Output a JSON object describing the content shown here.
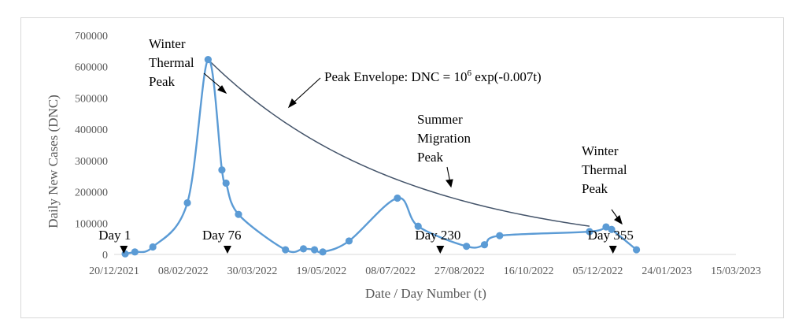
{
  "chart_data": {
    "type": "line",
    "title": "",
    "xlabel": "Date / Day Number (t)",
    "ylabel": "Daily New Cases (DNC)",
    "grid": false,
    "legend": "none",
    "x_domain_days": [
      0,
      450
    ],
    "ylim": [
      0,
      700000
    ],
    "y_ticks": [
      0,
      100000,
      200000,
      300000,
      400000,
      500000,
      600000,
      700000
    ],
    "x_tick_labels": [
      "20/12/2021",
      "08/02/2022",
      "30/03/2022",
      "19/05/2022",
      "08/07/2022",
      "27/08/2022",
      "16/10/2022",
      "05/12/2022",
      "24/01/2023",
      "15/03/2023"
    ],
    "series": [
      {
        "name": "Daily New Cases",
        "color": "#5b9bd5",
        "x": [
          8,
          15,
          28,
          53,
          68,
          78,
          81,
          90,
          124,
          137,
          145,
          151,
          170,
          205,
          220,
          255,
          268,
          279,
          344,
          356,
          360,
          378
        ],
        "values": [
          2000,
          8000,
          24000,
          165000,
          623000,
          270000,
          228000,
          128000,
          15000,
          18000,
          15000,
          8000,
          43000,
          180000,
          90000,
          26000,
          31000,
          60000,
          73000,
          88000,
          80000,
          15000
        ]
      }
    ],
    "envelope": {
      "name": "Peak Envelope",
      "color": "#44546a",
      "x_start": 68,
      "x_end": 344,
      "start_value": 623000,
      "decay_rate": -0.007
    },
    "annotations": {
      "winter_peak_1": [
        "Winter",
        "Thermal",
        "Peak"
      ],
      "envelope_label": "Peak Envelope: DNC = 10",
      "envelope_exp": "6",
      "envelope_rest": " exp(-0.007t)",
      "summer_peak": [
        "Summer",
        "Migration",
        "Peak"
      ],
      "winter_peak_2": [
        "Winter",
        "Thermal",
        "Peak"
      ],
      "day_markers": [
        {
          "label": "Day 1",
          "day": 1
        },
        {
          "label": "Day 76",
          "day": 76
        },
        {
          "label": "Day 230",
          "day": 230
        },
        {
          "label": "Day 355",
          "day": 355
        }
      ]
    }
  }
}
